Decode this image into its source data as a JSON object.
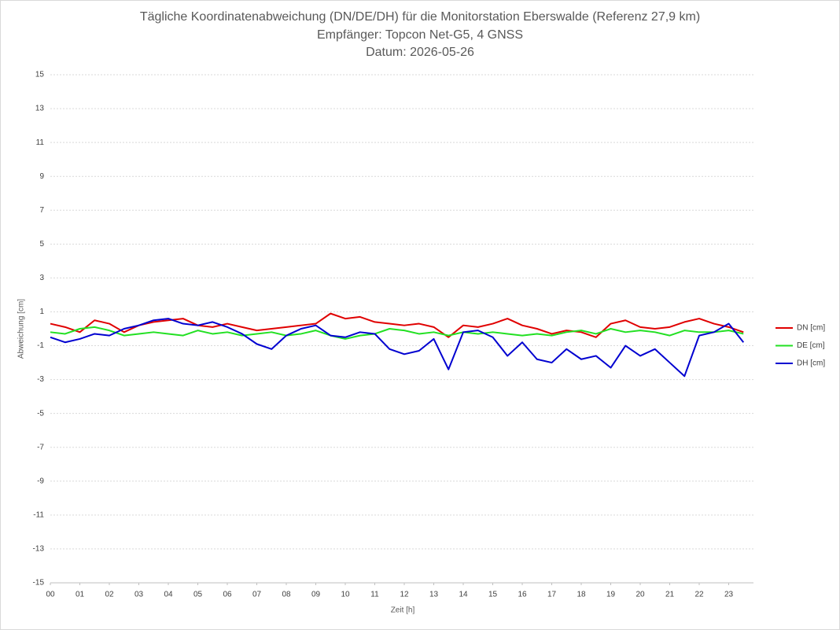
{
  "chart_data": {
    "type": "line",
    "title": "Tägliche Koordinatenabweichung (DN/DE/DH) für die Monitorstation Eberswalde (Referenz 27,9 km)",
    "subtitle": [
      "Empfänger: Topcon Net-G5, 4 GNSS",
      "Datum: 2026-05-26"
    ],
    "x_label": "Zeit [h]",
    "y_label": "Abweichung [cm]",
    "x": [
      0,
      0.5,
      1,
      1.5,
      2,
      2.5,
      3,
      3.5,
      4,
      4.5,
      5,
      5.5,
      6,
      6.5,
      7,
      7.5,
      8,
      8.5,
      9,
      9.5,
      10,
      10.5,
      11,
      11.5,
      12,
      12.5,
      13,
      13.5,
      14,
      14.5,
      15,
      15.5,
      16,
      16.5,
      17,
      17.5,
      18,
      18.5,
      19,
      19.5,
      20,
      20.5,
      21,
      21.5,
      22,
      22.5,
      23,
      23.5
    ],
    "series": [
      {
        "name": "DN [cm]",
        "color": "#e00000",
        "values": [
          0.3,
          0.1,
          -0.2,
          0.5,
          0.3,
          -0.2,
          0.2,
          0.4,
          0.5,
          0.6,
          0.2,
          0.1,
          0.3,
          0.1,
          -0.1,
          0,
          0.1,
          0.2,
          0.3,
          0.9,
          0.6,
          0.7,
          0.4,
          0.3,
          0.2,
          0.3,
          0.1,
          -0.5,
          0.2,
          0.1,
          0.3,
          0.6,
          0.2,
          0,
          -0.3,
          -0.1,
          -0.2,
          -0.5,
          0.3,
          0.5,
          0.1,
          0,
          0.1,
          0.4,
          0.6,
          0.3,
          0.1,
          -0.2
        ]
      },
      {
        "name": "DE [cm]",
        "color": "#22e022",
        "values": [
          -0.2,
          -0.3,
          0,
          0.1,
          -0.1,
          -0.4,
          -0.3,
          -0.2,
          -0.3,
          -0.4,
          -0.1,
          -0.3,
          -0.2,
          -0.4,
          -0.3,
          -0.2,
          -0.4,
          -0.3,
          -0.1,
          -0.4,
          -0.6,
          -0.4,
          -0.3,
          0,
          -0.1,
          -0.3,
          -0.2,
          -0.4,
          -0.2,
          -0.3,
          -0.2,
          -0.3,
          -0.4,
          -0.3,
          -0.4,
          -0.2,
          -0.1,
          -0.3,
          0,
          -0.2,
          -0.1,
          -0.2,
          -0.4,
          -0.1,
          -0.2,
          -0.2,
          -0.1,
          -0.3
        ]
      },
      {
        "name": "DH [cm]",
        "color": "#0000d0",
        "values": [
          -0.5,
          -0.8,
          -0.6,
          -0.3,
          -0.4,
          0,
          0.2,
          0.5,
          0.6,
          0.3,
          0.2,
          0.4,
          0.1,
          -0.3,
          -0.9,
          -1.2,
          -0.4,
          0,
          0.2,
          -0.4,
          -0.5,
          -0.2,
          -0.3,
          -1.2,
          -1.5,
          -1.3,
          -0.6,
          -2.4,
          -0.2,
          -0.1,
          -0.5,
          -1.6,
          -0.8,
          -1.8,
          -2.0,
          -1.2,
          -1.8,
          -1.6,
          -2.3,
          -1.0,
          -1.6,
          -1.2,
          -2.0,
          -2.8,
          -0.4,
          -0.2,
          0.3,
          -0.8
        ]
      }
    ],
    "xlim": [
      0,
      24
    ],
    "xticks": [
      {
        "value": 0,
        "label": "00"
      },
      {
        "value": 1,
        "label": "01"
      },
      {
        "value": 2,
        "label": "02"
      },
      {
        "value": 3,
        "label": "03"
      },
      {
        "value": 4,
        "label": "04"
      },
      {
        "value": 5,
        "label": "05"
      },
      {
        "value": 6,
        "label": "06"
      },
      {
        "value": 7,
        "label": "07"
      },
      {
        "value": 8,
        "label": "08"
      },
      {
        "value": 9,
        "label": "09"
      },
      10,
      11,
      12,
      13,
      14,
      15,
      16,
      17,
      18,
      19,
      20,
      21,
      22,
      23
    ],
    "ylim": [
      -15,
      15
    ],
    "yticks": [
      -15,
      -13,
      -11,
      -9,
      -7,
      -5,
      -3,
      -1,
      1,
      3,
      5,
      7,
      9,
      11,
      13,
      15
    ],
    "grid": true,
    "legend": "right"
  }
}
